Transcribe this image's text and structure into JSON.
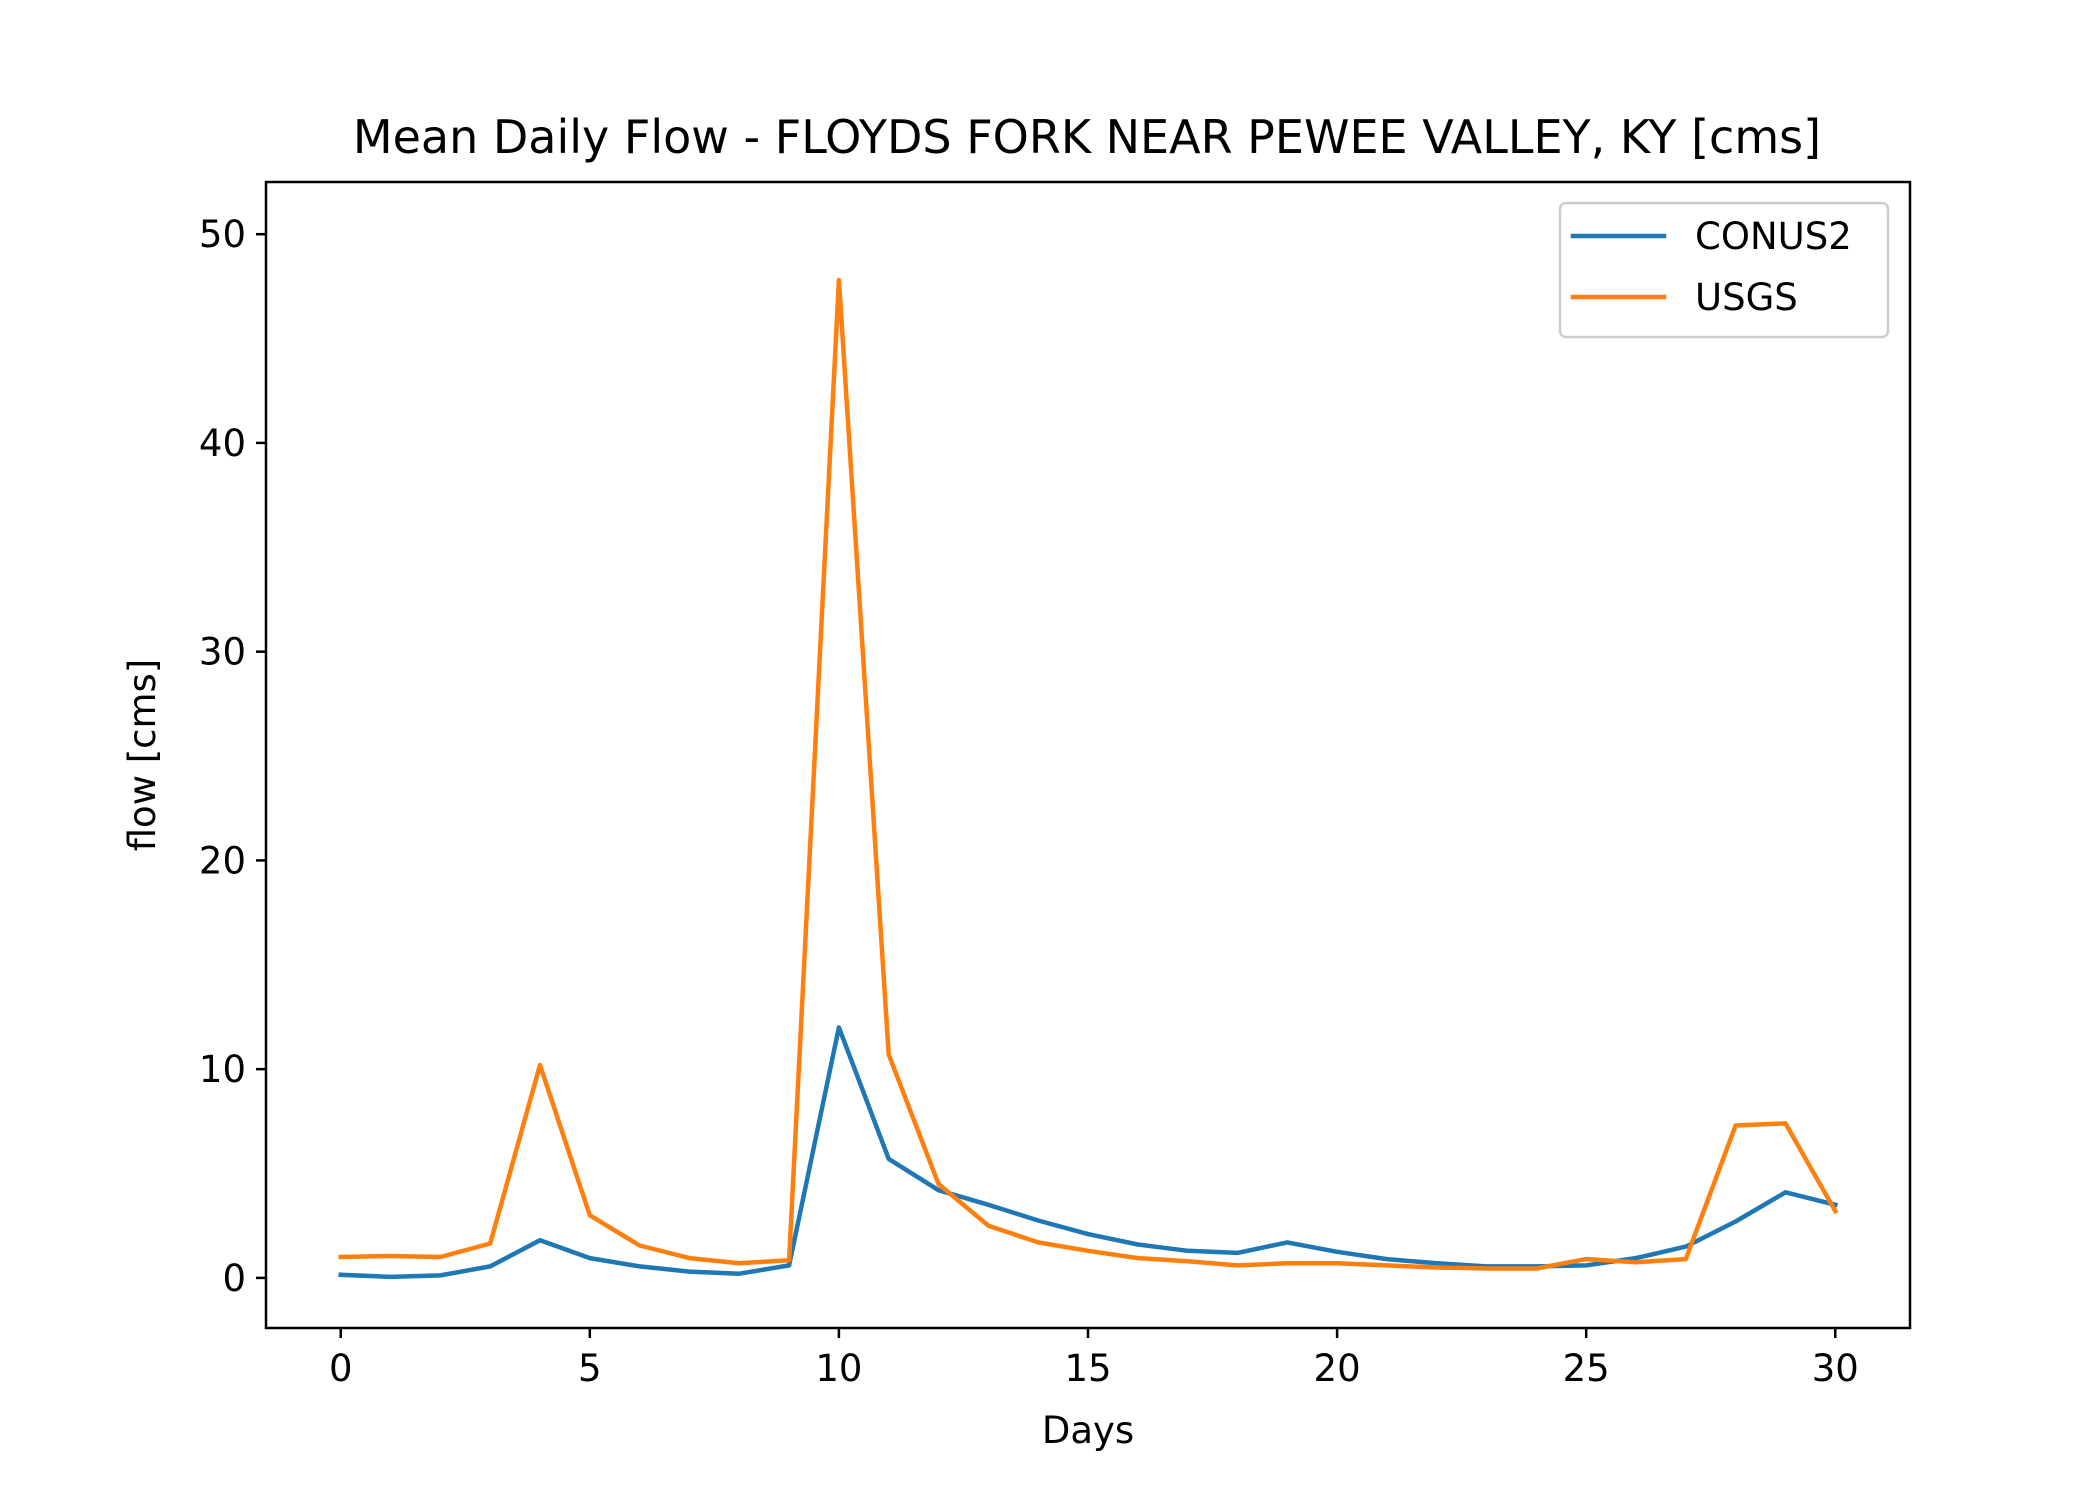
{
  "chart_data": {
    "type": "line",
    "title": "Mean Daily Flow - FLOYDS FORK NEAR PEWEE VALLEY, KY [cms]",
    "xlabel": "Days",
    "ylabel": "flow [cms]",
    "xlim": [
      -1.5,
      31.5
    ],
    "ylim": [
      -2.4,
      52.5
    ],
    "xticks": [
      0,
      5,
      10,
      15,
      20,
      25,
      30
    ],
    "xtick_labels": [
      "0",
      "5",
      "10",
      "15",
      "20",
      "25",
      "30"
    ],
    "yticks": [
      0,
      10,
      20,
      30,
      40,
      50
    ],
    "ytick_labels": [
      "0",
      "10",
      "20",
      "30",
      "40",
      "50"
    ],
    "grid": false,
    "legend_position": "top-right",
    "x": [
      0,
      1,
      2,
      3,
      4,
      5,
      6,
      7,
      8,
      9,
      10,
      11,
      12,
      13,
      14,
      15,
      16,
      17,
      18,
      19,
      20,
      21,
      22,
      23,
      24,
      25,
      26,
      27,
      28,
      29,
      30
    ],
    "series": [
      {
        "name": "CONUS2",
        "color": "#1f77b4",
        "values": [
          0.15,
          0.05,
          0.12,
          0.55,
          1.8,
          0.95,
          0.55,
          0.3,
          0.2,
          0.6,
          12.0,
          5.7,
          4.2,
          3.5,
          2.75,
          2.1,
          1.6,
          1.3,
          1.2,
          1.7,
          1.25,
          0.9,
          0.7,
          0.55,
          0.55,
          0.6,
          0.95,
          1.5,
          2.7,
          4.1,
          3.5
        ]
      },
      {
        "name": "USGS",
        "color": "#ff7f0e",
        "values": [
          1.0,
          1.05,
          1.0,
          1.65,
          10.2,
          3.0,
          1.55,
          0.95,
          0.7,
          0.85,
          47.8,
          10.7,
          4.5,
          2.5,
          1.7,
          1.3,
          0.95,
          0.8,
          0.6,
          0.7,
          0.7,
          0.6,
          0.5,
          0.45,
          0.45,
          0.9,
          0.75,
          0.9,
          7.3,
          7.4,
          3.2
        ]
      }
    ]
  }
}
